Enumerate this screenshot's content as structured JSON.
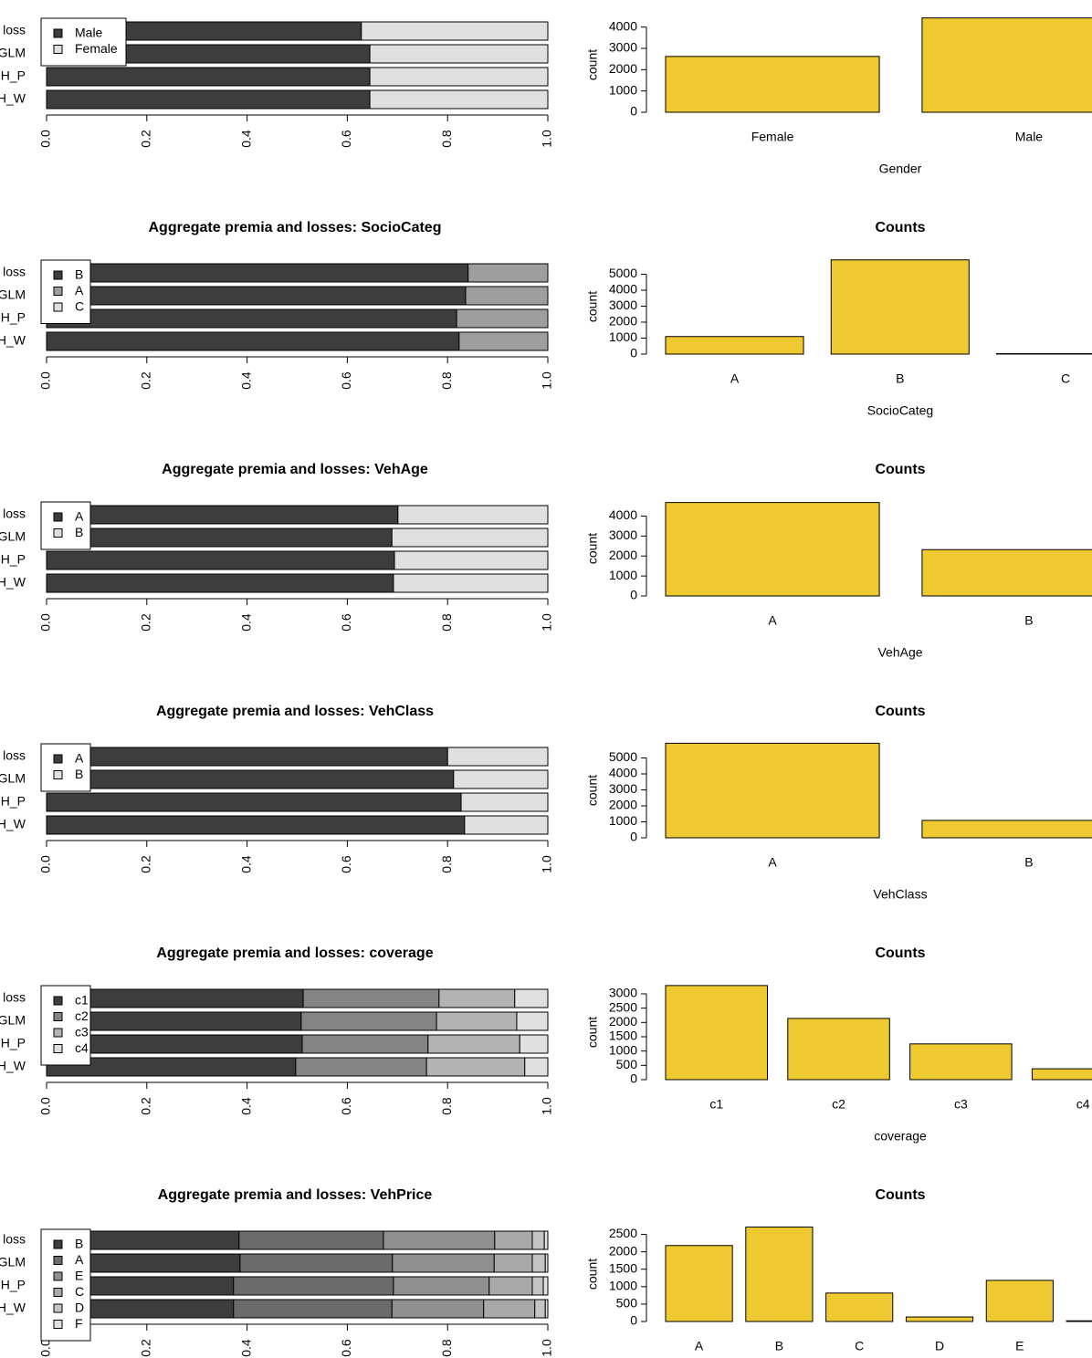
{
  "chart_data": [
    {
      "type": "hbar_stacked",
      "categories": [
        "loss",
        "GLM",
        "H_P",
        "H_W"
      ],
      "series": [
        {
          "name": "Male",
          "color": "#3d3d3d",
          "values": [
            0.628,
            0.645,
            0.645,
            0.645
          ]
        },
        {
          "name": "Female",
          "color": "#e0e0e0",
          "values": [
            0.372,
            0.355,
            0.355,
            0.355
          ]
        }
      ],
      "xlim": [
        0,
        1
      ],
      "xticks": [
        {
          "value": 0,
          "label": "0.0"
        },
        0.2,
        0.4,
        0.6,
        0.8,
        {
          "value": 1,
          "label": "1.0"
        }
      ]
    },
    {
      "type": "bar",
      "categories": [
        "Female",
        "Male"
      ],
      "values": [
        2620,
        4430
      ],
      "color": "#efc930",
      "xlabel": "Gender",
      "ylabel": "count",
      "ylim": [
        0,
        4500
      ],
      "yticks": [
        0,
        1000,
        2000,
        3000,
        4000
      ]
    },
    {
      "type": "hbar_stacked",
      "title": "Aggregate premia and losses: SocioCateg",
      "categories": [
        "loss",
        "GLM",
        "H_P",
        "H_W"
      ],
      "series": [
        {
          "name": "B",
          "color": "#3d3d3d",
          "values": [
            0.841,
            0.836,
            0.818,
            0.823
          ]
        },
        {
          "name": "A",
          "color": "#9e9e9e",
          "values": [
            0.159,
            0.164,
            0.182,
            0.177
          ]
        },
        {
          "name": "C",
          "color": "#e0e0e0",
          "values": [
            0,
            0,
            0,
            0
          ]
        }
      ],
      "xlim": [
        0,
        1
      ],
      "xticks": [
        {
          "value": 0,
          "label": "0.0"
        },
        0.2,
        0.4,
        0.6,
        0.8,
        {
          "value": 1,
          "label": "1.0"
        }
      ]
    },
    {
      "type": "bar",
      "title": "Counts",
      "categories": [
        "A",
        "B",
        "C"
      ],
      "values": [
        1100,
        5900,
        30
      ],
      "color": "#efc930",
      "xlabel": "SocioCateg",
      "ylabel": "count",
      "ylim": [
        0,
        6000
      ],
      "yticks": [
        0,
        1000,
        2000,
        3000,
        4000,
        5000
      ]
    },
    {
      "type": "hbar_stacked",
      "title": "Aggregate premia and losses: VehAge",
      "categories": [
        "loss",
        "GLM",
        "H_P",
        "H_W"
      ],
      "series": [
        {
          "name": "A",
          "color": "#3d3d3d",
          "values": [
            0.701,
            0.689,
            0.694,
            0.692
          ]
        },
        {
          "name": "B",
          "color": "#e0e0e0",
          "values": [
            0.299,
            0.311,
            0.306,
            0.308
          ]
        }
      ],
      "xlim": [
        0,
        1
      ],
      "xticks": [
        {
          "value": 0,
          "label": "0.0"
        },
        0.2,
        0.4,
        0.6,
        0.8,
        {
          "value": 1,
          "label": "1.0"
        }
      ]
    },
    {
      "type": "bar",
      "title": "Counts",
      "categories": [
        "A",
        "B"
      ],
      "values": [
        4680,
        2320
      ],
      "color": "#efc930",
      "xlabel": "VehAge",
      "ylabel": "count",
      "ylim": [
        0,
        4800
      ],
      "yticks": [
        0,
        1000,
        2000,
        3000,
        4000
      ]
    },
    {
      "type": "hbar_stacked",
      "title": "Aggregate premia and losses: VehClass",
      "categories": [
        "loss",
        "GLM",
        "H_P",
        "H_W"
      ],
      "series": [
        {
          "name": "A",
          "color": "#3d3d3d",
          "values": [
            0.8,
            0.812,
            0.827,
            0.834
          ]
        },
        {
          "name": "B",
          "color": "#e0e0e0",
          "values": [
            0.2,
            0.188,
            0.173,
            0.166
          ]
        }
      ],
      "xlim": [
        0,
        1
      ],
      "xticks": [
        {
          "value": 0,
          "label": "0.0"
        },
        0.2,
        0.4,
        0.6,
        0.8,
        {
          "value": 1,
          "label": "1.0"
        }
      ]
    },
    {
      "type": "bar",
      "title": "Counts",
      "categories": [
        "A",
        "B"
      ],
      "values": [
        5920,
        1090
      ],
      "color": "#efc930",
      "xlabel": "VehClass",
      "ylabel": "count",
      "ylim": [
        0,
        6000
      ],
      "yticks": [
        0,
        1000,
        2000,
        3000,
        4000,
        5000
      ]
    },
    {
      "type": "hbar_stacked",
      "title": "Aggregate premia and losses: coverage",
      "categories": [
        "loss",
        "GLM",
        "H_P",
        "H_W"
      ],
      "series": [
        {
          "name": "c1",
          "color": "#3d3d3d",
          "values": [
            0.512,
            0.508,
            0.51,
            0.497
          ]
        },
        {
          "name": "c2",
          "color": "#848484",
          "values": [
            0.271,
            0.27,
            0.251,
            0.261
          ]
        },
        {
          "name": "c3",
          "color": "#b3b3b3",
          "values": [
            0.151,
            0.16,
            0.183,
            0.196
          ]
        },
        {
          "name": "c4",
          "color": "#e0e0e0",
          "values": [
            0.066,
            0.062,
            0.056,
            0.046
          ]
        }
      ],
      "xlim": [
        0,
        1
      ],
      "xticks": [
        {
          "value": 0,
          "label": "0.0"
        },
        0.2,
        0.4,
        0.6,
        0.8,
        {
          "value": 1,
          "label": "1.0"
        }
      ]
    },
    {
      "type": "bar",
      "title": "Counts",
      "categories": [
        "c1",
        "c2",
        "c3",
        "c4"
      ],
      "values": [
        3290,
        2140,
        1250,
        380
      ],
      "color": "#efc930",
      "xlabel": "coverage",
      "ylabel": "count",
      "ylim": [
        0,
        3350
      ],
      "yticks": [
        0,
        500,
        1000,
        1500,
        2000,
        2500,
        3000
      ]
    },
    {
      "type": "hbar_stacked",
      "title": "Aggregate premia and losses: VehPrice",
      "categories": [
        "loss",
        "GLM",
        "H_P",
        "H_W"
      ],
      "series": [
        {
          "name": "B",
          "color": "#3d3d3d",
          "values": [
            0.384,
            0.386,
            0.373,
            0.373
          ]
        },
        {
          "name": "A",
          "color": "#6b6b6b",
          "values": [
            0.288,
            0.304,
            0.319,
            0.316
          ]
        },
        {
          "name": "E",
          "color": "#8f8f8f",
          "values": [
            0.222,
            0.203,
            0.191,
            0.183
          ]
        },
        {
          "name": "C",
          "color": "#a9a9a9",
          "values": [
            0.075,
            0.076,
            0.086,
            0.102
          ]
        },
        {
          "name": "D",
          "color": "#c4c4c4",
          "values": [
            0.024,
            0.026,
            0.022,
            0.021
          ]
        },
        {
          "name": "F",
          "color": "#e0e0e0",
          "values": [
            0.007,
            0.005,
            0.009,
            0.005
          ]
        }
      ],
      "xlim": [
        0,
        1
      ],
      "xticks": [
        {
          "value": 0,
          "label": "0.0"
        },
        0.2,
        0.4,
        0.6,
        0.8,
        {
          "value": 1,
          "label": "1.0"
        }
      ]
    },
    {
      "type": "bar",
      "title": "Counts",
      "categories": [
        "A",
        "B",
        "C",
        "D",
        "E",
        null
      ],
      "values": [
        2180,
        2710,
        816,
        130,
        1180,
        20
      ],
      "color": "#efc930",
      "ylabel": "count",
      "ylim": [
        0,
        2750
      ],
      "yticks": [
        0,
        500,
        1000,
        1500,
        2000,
        2500
      ]
    }
  ]
}
